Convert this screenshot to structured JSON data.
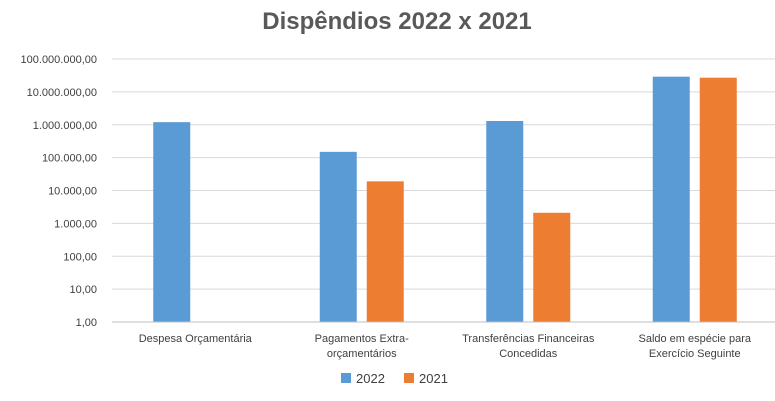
{
  "chart_data": {
    "type": "bar",
    "title": "Dispêndios 2022 x 2021",
    "y_scale": "log",
    "ylim": [
      1,
      100000000
    ],
    "y_ticks": [
      {
        "value": 1,
        "label": "1,00"
      },
      {
        "value": 10,
        "label": "10,00"
      },
      {
        "value": 100,
        "label": "100,00"
      },
      {
        "value": 1000,
        "label": "1.000,00"
      },
      {
        "value": 10000,
        "label": "10.000,00"
      },
      {
        "value": 100000,
        "label": "100.000,00"
      },
      {
        "value": 1000000,
        "label": "1.000.000,00"
      },
      {
        "value": 10000000,
        "label": "10.000.000,00"
      },
      {
        "value": 100000000,
        "label": "100.000.000,00"
      }
    ],
    "categories": [
      [
        "Despesa Orçamentária"
      ],
      [
        "Pagamentos Extra-",
        "orçamentários"
      ],
      [
        "Transferências Financeiras",
        "Concedidas"
      ],
      [
        "Saldo em espécie para",
        "Exercício Seguinte"
      ]
    ],
    "series": [
      {
        "name": "2022",
        "color": "#5b9bd5",
        "values": [
          1200000,
          150000,
          1300000,
          29000000
        ]
      },
      {
        "name": "2021",
        "color": "#ed7d31",
        "values": [
          null,
          19000,
          2100,
          27000000
        ]
      }
    ],
    "grid": true,
    "legend_position": "bottom"
  }
}
